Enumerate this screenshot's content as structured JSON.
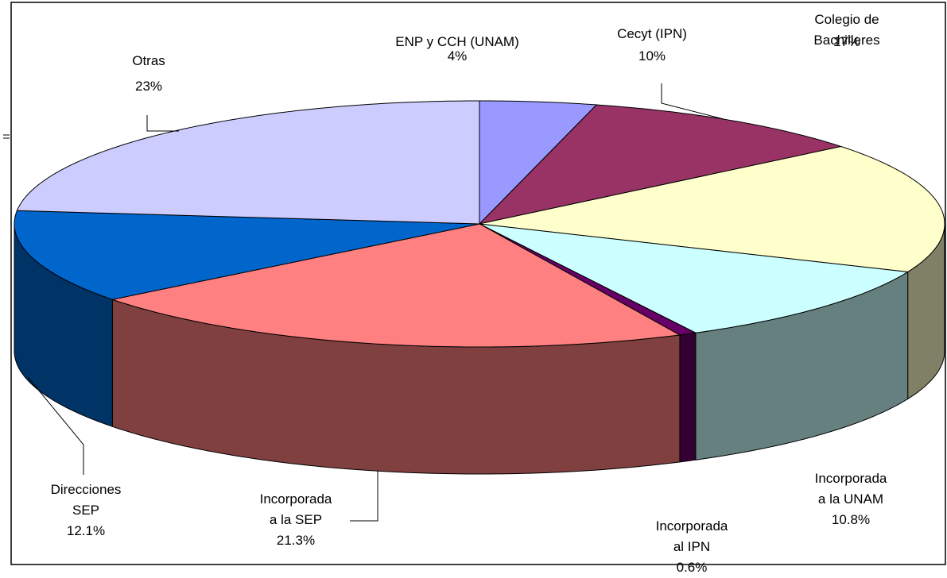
{
  "chart_data": {
    "type": "pie",
    "categories": [
      "ENP y CCH (UNAM)",
      "Cecyt (IPN)",
      "Colegio de Bachilleres",
      "Incorporada\na la UNAM",
      "Incorporada\nal IPN",
      "Incorporada\na la SEP",
      "Direcciones\nSEP",
      "Otras"
    ],
    "values": [
      4,
      10,
      17,
      10.8,
      0.6,
      21.3,
      12.1,
      23
    ],
    "value_labels": [
      "4%",
      "10%",
      "17%",
      "10.8%",
      "0.6%",
      "21.3%",
      "12.1%",
      "23%"
    ],
    "colors": [
      "#9999ff",
      "#993366",
      "#ffffcc",
      "#ccffff",
      "#660066",
      "#ff8080",
      "#0066cc",
      "#ccccff"
    ]
  }
}
